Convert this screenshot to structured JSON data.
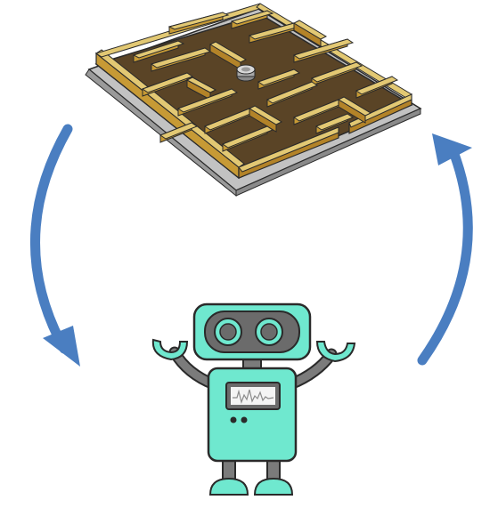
{
  "diagram": {
    "type": "cycle",
    "nodes": [
      {
        "id": "maze",
        "icon": "maze-icon"
      },
      {
        "id": "robot",
        "icon": "robot-icon"
      }
    ],
    "edges": [
      {
        "from": "maze",
        "to": "robot",
        "side": "left"
      },
      {
        "from": "robot",
        "to": "maze",
        "side": "right"
      }
    ]
  },
  "colors": {
    "background": "#ffffff",
    "arrow": "#4a7ec1",
    "maze_wall_top": "#e2c873",
    "maze_wall_front": "#c79a35",
    "maze_wall_side": "#b38328",
    "maze_floor": "#5a4426",
    "maze_base": "#b9b9b9",
    "robot_body": "#6fe8cf",
    "robot_limbs": "#7b7b7b",
    "robot_eyes": "#6b6b6b",
    "robot_outline": "#2a2a2a",
    "screen_bg": "#f4f4f4"
  }
}
